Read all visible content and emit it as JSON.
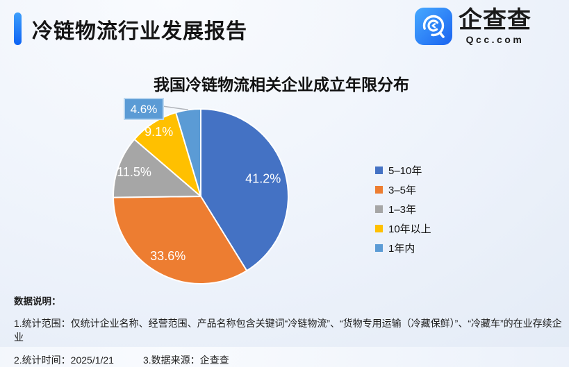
{
  "header": {
    "report_title": "冷链物流行业发展报告",
    "logo": {
      "brand": "企查查",
      "domain": "Qcc.com"
    }
  },
  "chart_data": {
    "type": "pie",
    "title": "我国冷链物流相关企业成立年限分布",
    "unit": "%",
    "series": [
      {
        "label": "5–10年",
        "value": 41.2,
        "color": "#4472C4"
      },
      {
        "label": "3–5年",
        "value": 33.6,
        "color": "#ED7D31"
      },
      {
        "label": "1–3年",
        "value": 11.5,
        "color": "#A6A6A6"
      },
      {
        "label": "10年以上",
        "value": 9.1,
        "color": "#FFC000"
      },
      {
        "label": "1年内",
        "value": 4.6,
        "color": "#5B9BD5"
      }
    ],
    "start_angle": "12-o'clock, clockwise",
    "legend_position": "right",
    "labels": "percent values inside slices; smallest slice uses callout box"
  },
  "footer": {
    "notes_title": "数据说明：",
    "note_scope": "1.统计范围：仅统计企业名称、经营范围、产品名称包含关键词“冷链物流”、“货物专用运输（冷藏保鲜）”、“冷藏车”的在业存续企业",
    "note_time": "2.统计时间：2025/1/21",
    "note_source": "3.数据来源：企查查"
  },
  "colors": {
    "accent_blue": "#1677F5",
    "callout_fill": "#5B9BD5",
    "callout_border": "#bad7f0",
    "leader_line": "#b0b4ba",
    "slice_border": "#ffffff"
  }
}
